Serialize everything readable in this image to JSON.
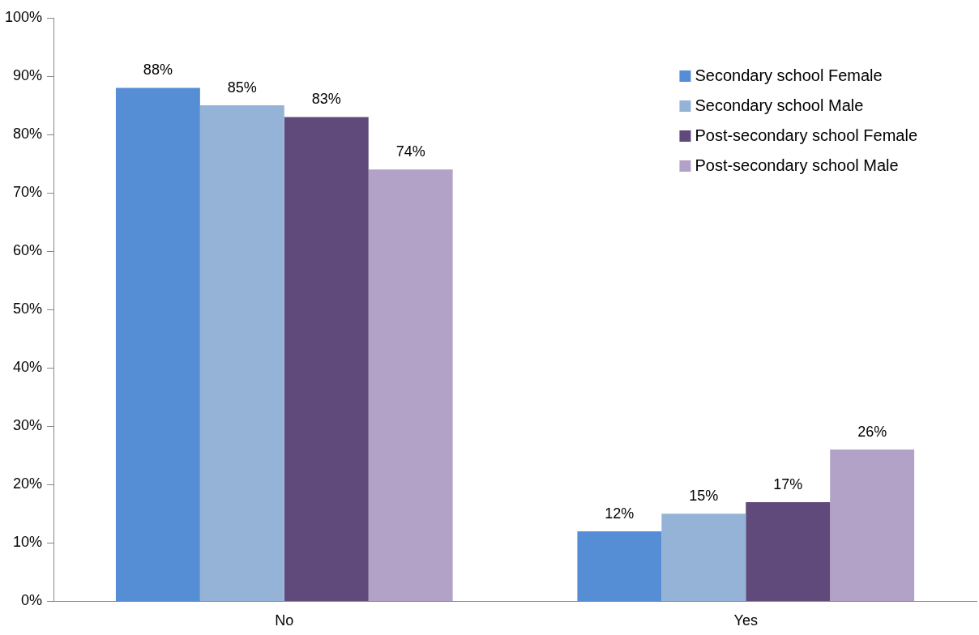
{
  "chart_data": {
    "type": "bar",
    "categories": [
      "No",
      "Yes"
    ],
    "series": [
      {
        "name": "Secondary school Female",
        "color": "#558ed5",
        "values": [
          88,
          12
        ],
        "value_labels": [
          "88%",
          "12%"
        ]
      },
      {
        "name": "Secondary school Male",
        "color": "#95b3d7",
        "values": [
          85,
          15
        ],
        "value_labels": [
          "85%",
          "15%"
        ]
      },
      {
        "name": "Post-secondary school Female",
        "color": "#604a7b",
        "values": [
          83,
          17
        ],
        "value_labels": [
          "83%",
          "17%"
        ]
      },
      {
        "name": "Post-secondary school Male",
        "color": "#b3a2c7",
        "values": [
          74,
          26
        ],
        "value_labels": [
          "74%",
          "26%"
        ]
      }
    ],
    "ylim": [
      0,
      100
    ],
    "yticks": [
      {
        "value": 0,
        "label": "0%"
      },
      {
        "value": 10,
        "label": "10%"
      },
      {
        "value": 20,
        "label": "20%"
      },
      {
        "value": 30,
        "label": "30%"
      },
      {
        "value": 40,
        "label": "40%"
      },
      {
        "value": 50,
        "label": "50%"
      },
      {
        "value": 60,
        "label": "60%"
      },
      {
        "value": 70,
        "label": "70%"
      },
      {
        "value": 80,
        "label": "80%"
      },
      {
        "value": 90,
        "label": "90%"
      },
      {
        "value": 100,
        "label": "100%"
      }
    ],
    "grid": false,
    "legend": "top right"
  }
}
